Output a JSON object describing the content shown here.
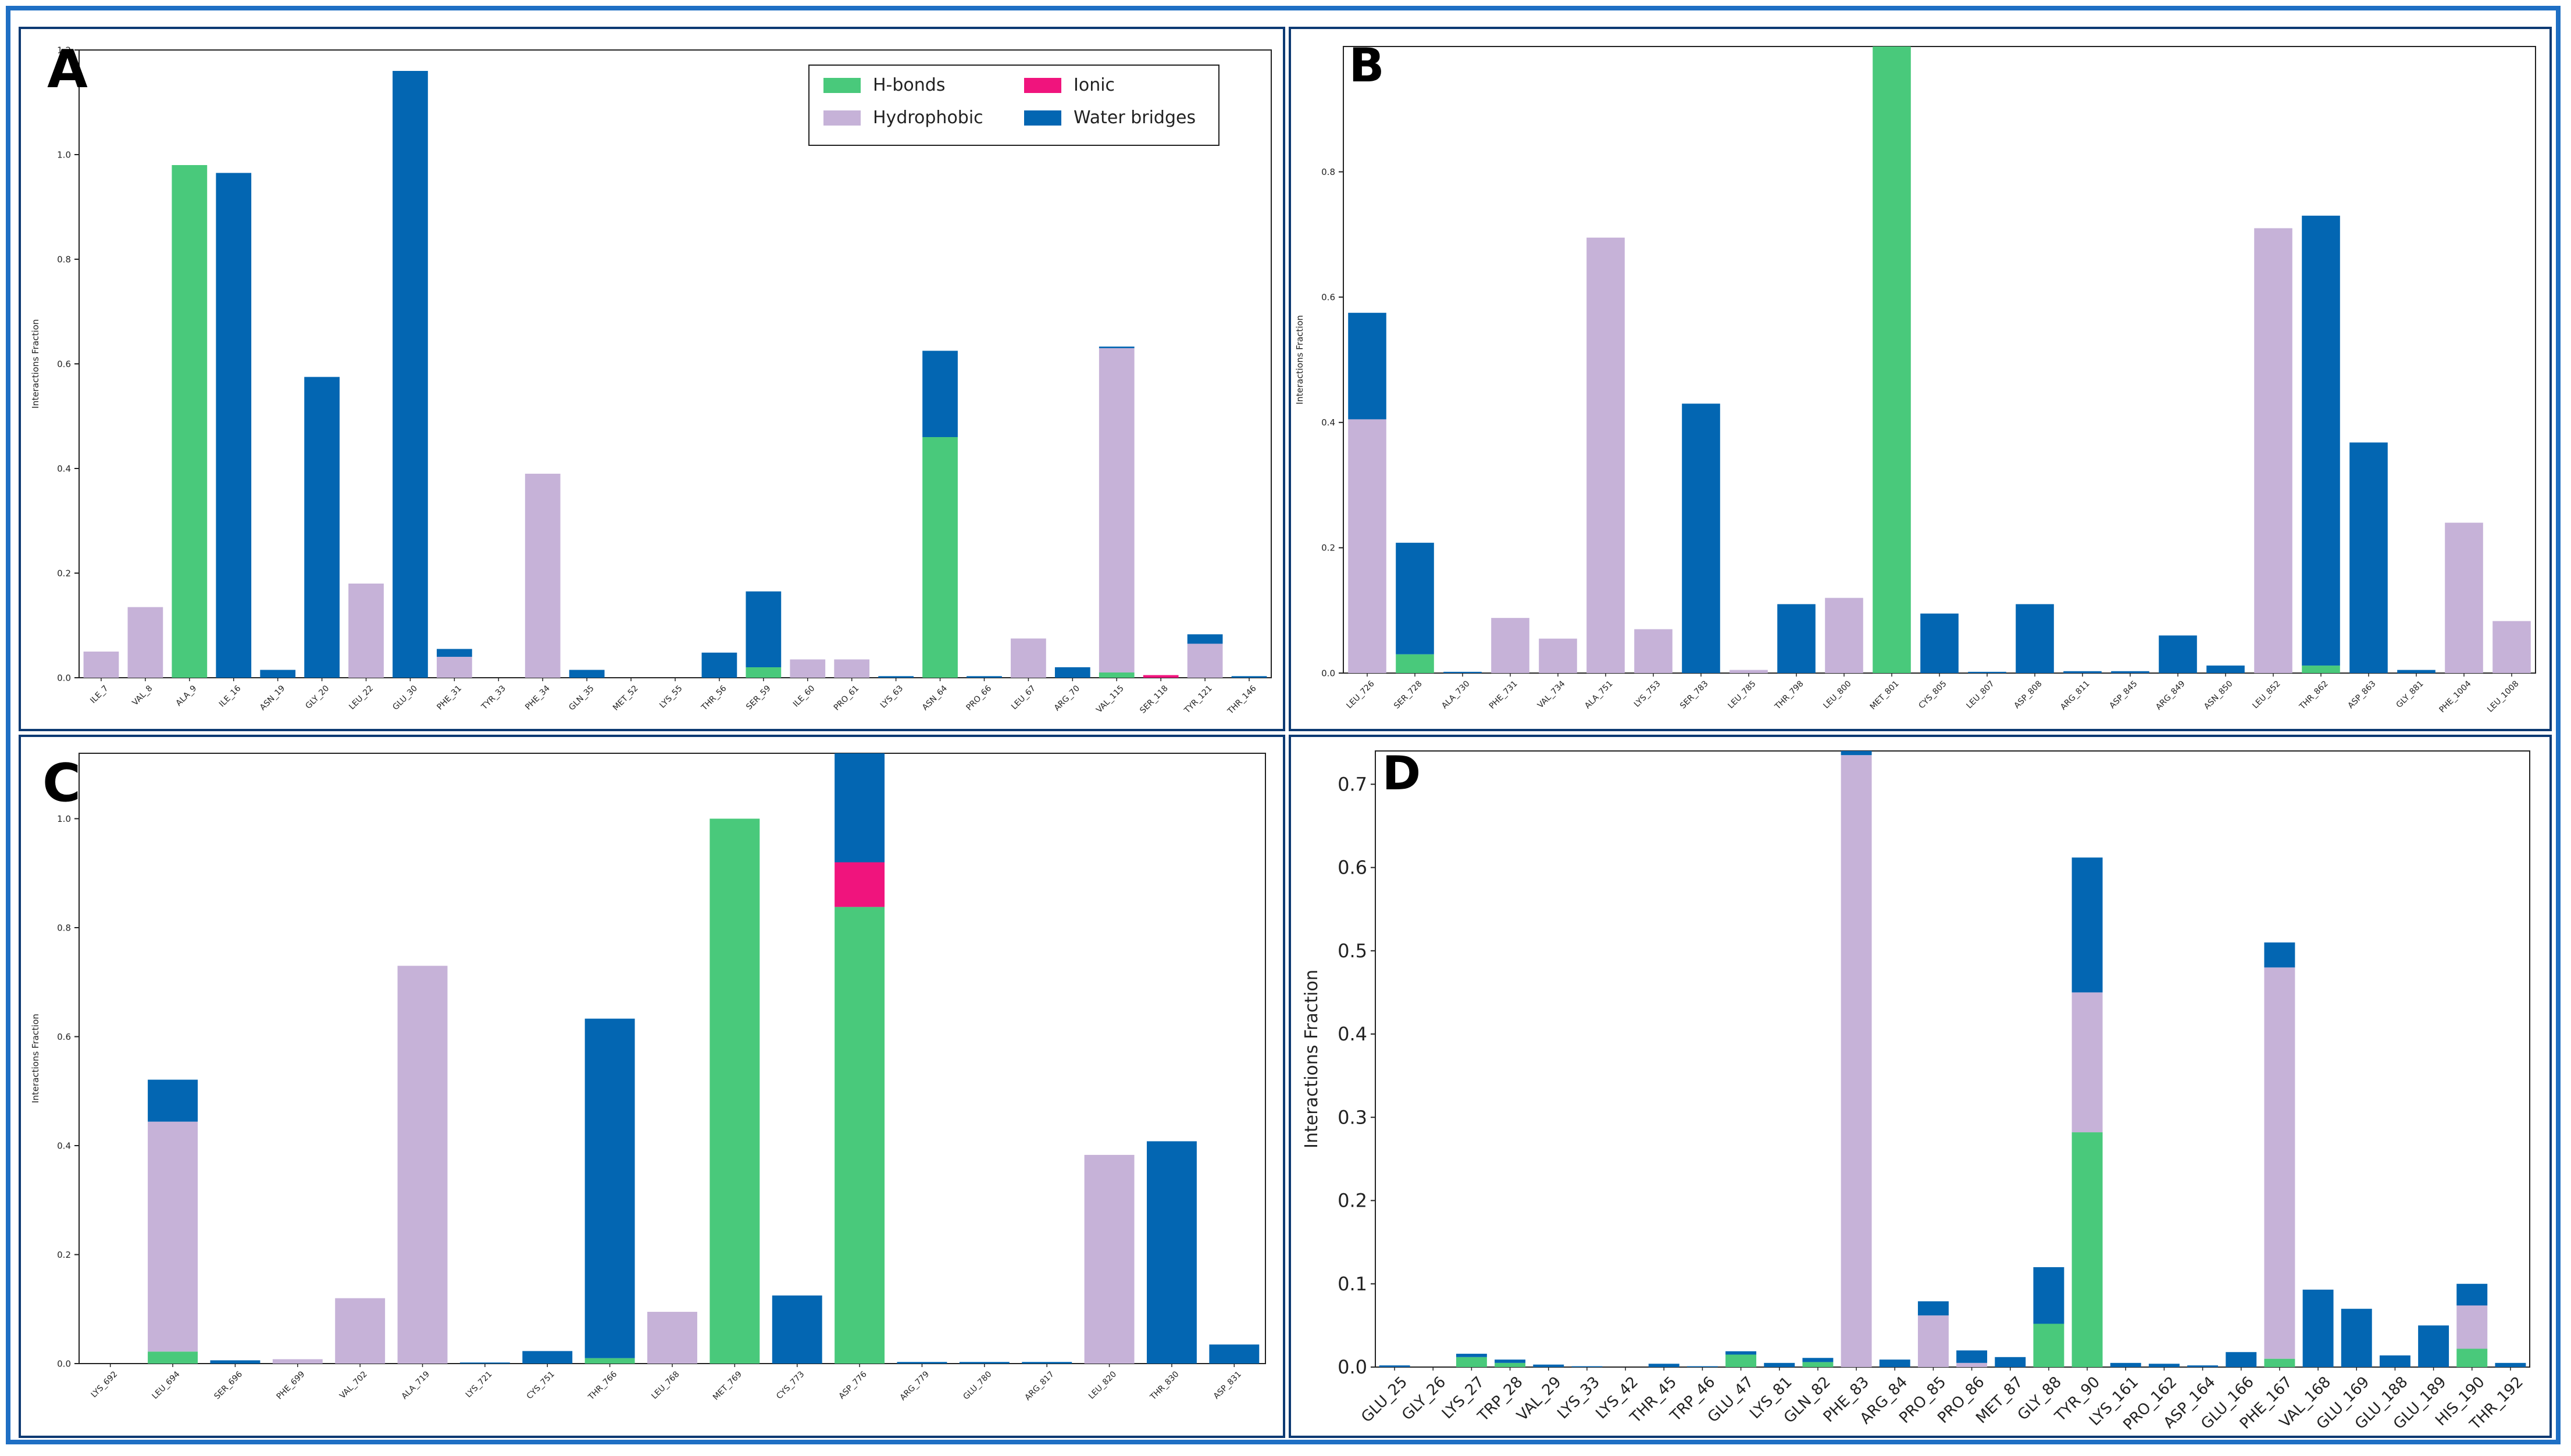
{
  "colors": {
    "hbonds": "#49c97b",
    "hydrophobic": "#c6b2d8",
    "ionic": "#f0147d",
    "water": "#0366b2",
    "border": "#1f6fc4"
  },
  "legend": {
    "items": [
      {
        "label": "H-bonds",
        "key": "hbonds"
      },
      {
        "label": "Ionic",
        "key": "ionic"
      },
      {
        "label": "Hydrophobic",
        "key": "hydrophobic"
      },
      {
        "label": "Water bridges",
        "key": "water"
      }
    ]
  },
  "chart_data": [
    {
      "panel_label": "A",
      "type": "bar",
      "stacked": true,
      "ylabel": "Interactions Fraction",
      "ylim": [
        0,
        1.2
      ],
      "yticks": [
        0.0,
        0.2,
        0.4,
        0.6,
        0.8,
        1.0,
        1.2
      ],
      "legend": "top-right",
      "categories": [
        "ILE_7",
        "VAL_8",
        "ALA_9",
        "ILE_16",
        "ASN_19",
        "GLY_20",
        "LEU_22",
        "GLU_30",
        "PHE_31",
        "TYR_33",
        "PHE_34",
        "GLN_35",
        "MET_52",
        "LYS_55",
        "THR_56",
        "SER_59",
        "ILE_60",
        "PRO_61",
        "LYS_63",
        "ASN_64",
        "PRO_66",
        "LEU_67",
        "ARG_70",
        "VAL_115",
        "SER_118",
        "TYR_121",
        "THR_146"
      ],
      "series": [
        {
          "name": "H-bonds",
          "values": [
            0,
            0,
            0.98,
            0,
            0,
            0,
            0,
            0,
            0,
            0,
            0,
            0,
            0,
            0,
            0,
            0.02,
            0,
            0,
            0,
            0.46,
            0,
            0,
            0,
            0.01,
            0,
            0,
            0
          ]
        },
        {
          "name": "Hydrophobic",
          "values": [
            0.05,
            0.135,
            0,
            0,
            0,
            0,
            0.18,
            0,
            0.04,
            0,
            0.39,
            0,
            0,
            0,
            0,
            0,
            0.035,
            0.035,
            0,
            0,
            0,
            0.075,
            0,
            0.62,
            0,
            0.065,
            0
          ]
        },
        {
          "name": "Ionic",
          "values": [
            0,
            0,
            0,
            0,
            0,
            0,
            0,
            0,
            0,
            0,
            0,
            0,
            0,
            0,
            0,
            0,
            0,
            0,
            0,
            0,
            0,
            0,
            0,
            0,
            0.005,
            0,
            0
          ]
        },
        {
          "name": "Water bridges",
          "values": [
            0,
            0,
            0,
            0.965,
            0.015,
            0.575,
            0,
            1.16,
            0.015,
            0,
            0,
            0.015,
            0,
            0,
            0.048,
            0.145,
            0,
            0,
            0.003,
            0.165,
            0.003,
            0,
            0.02,
            0.003,
            0,
            0.018,
            0.003
          ]
        }
      ]
    },
    {
      "panel_label": "B",
      "type": "bar",
      "stacked": true,
      "ylabel": "Interactions Fraction",
      "ylim": [
        0,
        1.0
      ],
      "yticks": [
        0.0,
        0.2,
        0.4,
        0.6,
        0.8
      ],
      "categories": [
        "LEU_726",
        "SER_728",
        "ALA_730",
        "PHE_731",
        "VAL_734",
        "ALA_751",
        "LYS_753",
        "SER_783",
        "LEU_785",
        "THR_798",
        "LEU_800",
        "MET_801",
        "CYS_805",
        "LEU_807",
        "ASP_808",
        "ARG_811",
        "ASP_845",
        "ARG_849",
        "ASN_850",
        "LEU_852",
        "THR_862",
        "ASP_863",
        "GLY_881",
        "PHE_1004",
        "LEU_1008"
      ],
      "series": [
        {
          "name": "H-bonds",
          "values": [
            0,
            0.03,
            0,
            0,
            0,
            0,
            0,
            0,
            0,
            0,
            0,
            1.0,
            0,
            0,
            0,
            0,
            0,
            0,
            0,
            0,
            0.012,
            0,
            0,
            0,
            0
          ]
        },
        {
          "name": "Hydrophobic",
          "values": [
            0.405,
            0,
            0,
            0.088,
            0.055,
            0.695,
            0.07,
            0,
            0.005,
            0,
            0.12,
            0,
            0,
            0,
            0,
            0,
            0,
            0,
            0,
            0.71,
            0,
            0,
            0,
            0.24,
            0.083
          ]
        },
        {
          "name": "Ionic",
          "values": [
            0,
            0,
            0,
            0,
            0,
            0,
            0,
            0,
            0,
            0,
            0,
            0,
            0,
            0,
            0,
            0,
            0,
            0,
            0,
            0,
            0,
            0,
            0,
            0,
            0
          ]
        },
        {
          "name": "Water bridges",
          "values": [
            0.17,
            0.178,
            0.002,
            0,
            0,
            0,
            0,
            0.43,
            0,
            0.11,
            0,
            0,
            0.095,
            0.002,
            0.11,
            0.003,
            0.003,
            0.06,
            0.012,
            0,
            0.718,
            0.368,
            0.005,
            0,
            0
          ]
        }
      ]
    },
    {
      "panel_label": "C",
      "type": "bar",
      "stacked": true,
      "ylabel": "Interactions Fraction",
      "ylim": [
        0,
        1.12
      ],
      "yticks": [
        0.0,
        0.2,
        0.4,
        0.6,
        0.8,
        1.0
      ],
      "categories": [
        "LYS_692",
        "LEU_694",
        "SER_696",
        "PHE_699",
        "VAL_702",
        "ALA_719",
        "LYS_721",
        "CYS_751",
        "THR_766",
        "LEU_768",
        "MET_769",
        "CYS_773",
        "ASP_776",
        "ARG_779",
        "GLU_780",
        "ARG_817",
        "LEU_820",
        "THR_830",
        "ASP_831"
      ],
      "series": [
        {
          "name": "H-bonds",
          "values": [
            0,
            0.022,
            0,
            0,
            0,
            0,
            0,
            0,
            0.01,
            0,
            1.0,
            0,
            0.838,
            0,
            0,
            0,
            0,
            0,
            0
          ]
        },
        {
          "name": "Hydrophobic",
          "values": [
            0,
            0.422,
            0,
            0.008,
            0.12,
            0.73,
            0,
            0,
            0,
            0.095,
            0,
            0,
            0,
            0,
            0,
            0,
            0.383,
            0,
            0
          ]
        },
        {
          "name": "Ionic",
          "values": [
            0,
            0,
            0,
            0,
            0,
            0,
            0,
            0,
            0,
            0,
            0,
            0,
            0.082,
            0,
            0,
            0,
            0,
            0,
            0
          ]
        },
        {
          "name": "Water bridges",
          "values": [
            0,
            0.077,
            0.006,
            0,
            0,
            0,
            0.002,
            0.023,
            0.623,
            0,
            0,
            0.125,
            0.2,
            0.003,
            0.003,
            0.003,
            0,
            0.408,
            0.035
          ]
        }
      ]
    },
    {
      "panel_label": "D",
      "type": "bar",
      "stacked": true,
      "ylabel": "Interactions Fraction",
      "ylim": [
        0,
        0.74
      ],
      "yticks": [
        0.0,
        0.1,
        0.2,
        0.3,
        0.4,
        0.5,
        0.6,
        0.7
      ],
      "categories": [
        "GLU_25",
        "GLY_26",
        "LYS_27",
        "TRP_28",
        "VAL_29",
        "LYS_33",
        "LYS_42",
        "THR_45",
        "TRP_46",
        "GLU_47",
        "LYS_81",
        "GLN_82",
        "PHE_83",
        "ARG_84",
        "PRO_85",
        "PRO_86",
        "MET_87",
        "GLY_88",
        "TYR_90",
        "LYS_161",
        "PRO_162",
        "ASP_164",
        "GLU_166",
        "PHE_167",
        "VAL_168",
        "GLU_169",
        "GLU_188",
        "GLU_189",
        "HIS_190",
        "THR_192"
      ],
      "series": [
        {
          "name": "H-bonds",
          "values": [
            0,
            0,
            0.012,
            0.005,
            0,
            0,
            0,
            0,
            0,
            0.015,
            0,
            0.006,
            0,
            0,
            0,
            0,
            0,
            0.052,
            0.282,
            0,
            0,
            0,
            0,
            0.01,
            0,
            0,
            0,
            0,
            0.022,
            0
          ]
        },
        {
          "name": "Hydrophobic",
          "values": [
            0,
            0,
            0,
            0,
            0,
            0,
            0,
            0,
            0,
            0,
            0,
            0,
            0.735,
            0,
            0.062,
            0.005,
            0,
            0,
            0.168,
            0,
            0,
            0,
            0,
            0.47,
            0,
            0,
            0,
            0,
            0.052,
            0
          ]
        },
        {
          "name": "Ionic",
          "values": [
            0,
            0,
            0,
            0,
            0,
            0,
            0,
            0,
            0,
            0,
            0,
            0,
            0,
            0,
            0,
            0,
            0,
            0,
            0,
            0,
            0,
            0,
            0,
            0,
            0,
            0,
            0,
            0,
            0,
            0
          ]
        },
        {
          "name": "Water bridges",
          "values": [
            0.002,
            0,
            0.004,
            0.004,
            0.003,
            0.001,
            0,
            0.004,
            0.001,
            0.004,
            0.005,
            0.005,
            0.005,
            0.009,
            0.017,
            0.015,
            0.012,
            0.068,
            0.162,
            0.005,
            0.004,
            0.002,
            0.018,
            0.03,
            0.093,
            0.07,
            0.014,
            0.05,
            0.026,
            0.005
          ]
        }
      ]
    }
  ]
}
